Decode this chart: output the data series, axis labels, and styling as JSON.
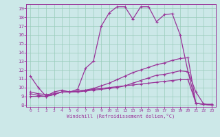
{
  "xlabel": "Windchill (Refroidissement éolien,°C)",
  "background_color": "#cce8e8",
  "grid_color": "#99ccbb",
  "line_color": "#993399",
  "xlim": [
    -0.5,
    23.5
  ],
  "ylim": [
    7.8,
    19.5
  ],
  "yticks": [
    8,
    9,
    10,
    11,
    12,
    13,
    14,
    15,
    16,
    17,
    18,
    19
  ],
  "xticks": [
    0,
    1,
    2,
    3,
    4,
    5,
    6,
    7,
    8,
    9,
    10,
    11,
    12,
    13,
    14,
    15,
    16,
    17,
    18,
    19,
    20,
    21,
    22,
    23
  ],
  "line1_x": [
    0,
    1,
    2,
    3,
    4,
    5,
    6,
    7,
    8,
    9,
    10,
    11,
    12,
    13,
    14,
    15,
    16,
    17,
    18,
    19,
    20,
    21,
    22,
    23
  ],
  "line1_y": [
    11.3,
    10.0,
    9.0,
    9.5,
    9.7,
    9.5,
    9.8,
    12.2,
    13.0,
    17.0,
    18.5,
    19.2,
    19.2,
    17.8,
    19.2,
    19.2,
    17.5,
    18.3,
    18.4,
    16.0,
    11.8,
    9.5,
    8.1,
    8.1
  ],
  "line2_x": [
    0,
    1,
    2,
    3,
    4,
    5,
    6,
    7,
    8,
    9,
    10,
    11,
    12,
    13,
    14,
    15,
    16,
    17,
    18,
    19,
    20,
    21,
    22,
    23
  ],
  "line2_y": [
    9.0,
    9.0,
    9.0,
    9.2,
    9.5,
    9.5,
    9.5,
    9.6,
    9.7,
    9.8,
    9.9,
    10.0,
    10.2,
    10.5,
    10.8,
    11.1,
    11.4,
    11.5,
    11.7,
    11.9,
    11.8,
    8.2,
    8.1,
    8.0
  ],
  "line3_x": [
    0,
    1,
    2,
    3,
    4,
    5,
    6,
    7,
    8,
    9,
    10,
    11,
    12,
    13,
    14,
    15,
    16,
    17,
    18,
    19,
    20,
    21,
    22,
    23
  ],
  "line3_y": [
    9.3,
    9.1,
    9.0,
    9.2,
    9.5,
    9.5,
    9.6,
    9.7,
    9.9,
    10.2,
    10.5,
    10.9,
    11.3,
    11.7,
    12.0,
    12.3,
    12.6,
    12.8,
    13.1,
    13.3,
    13.4,
    8.2,
    8.1,
    8.0
  ],
  "line4_x": [
    0,
    1,
    2,
    3,
    4,
    5,
    6,
    7,
    8,
    9,
    10,
    11,
    12,
    13,
    14,
    15,
    16,
    17,
    18,
    19,
    20,
    21,
    22,
    23
  ],
  "line4_y": [
    9.5,
    9.3,
    9.2,
    9.3,
    9.5,
    9.5,
    9.6,
    9.7,
    9.8,
    9.9,
    10.0,
    10.1,
    10.2,
    10.3,
    10.4,
    10.5,
    10.6,
    10.7,
    10.8,
    10.9,
    10.9,
    8.2,
    8.1,
    8.0
  ]
}
